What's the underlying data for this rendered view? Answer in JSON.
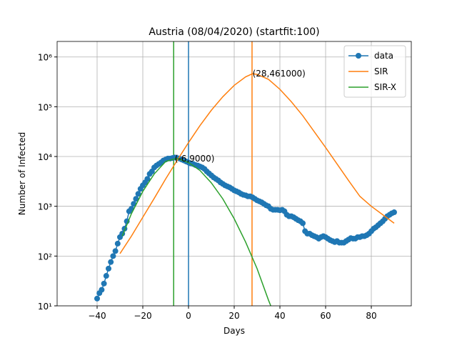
{
  "chart_data": {
    "type": "line",
    "title": "Austria (08/04/2020) (startfit:100)",
    "xlabel": "Days",
    "ylabel": "Number of Infected",
    "log_y": true,
    "grid": true,
    "legend": "upper right",
    "xlim": [
      -57.5,
      97.5
    ],
    "xticks": [
      {
        "value": -40,
        "label": "−40"
      },
      {
        "value": -20,
        "label": "−20"
      },
      0,
      20,
      40,
      60,
      80
    ],
    "ylim": [
      10,
      2050000
    ],
    "yticks": [
      {
        "value": 10,
        "label": "10¹"
      },
      {
        "value": 100,
        "label": "10²"
      },
      {
        "value": 1000,
        "label": "10³"
      },
      {
        "value": 10000,
        "label": "10⁴"
      },
      {
        "value": 100000,
        "label": "10⁵"
      },
      {
        "value": 1000000,
        "label": "10⁶"
      }
    ],
    "series": [
      {
        "name": "data",
        "color": "#1f77b4",
        "marker": "o",
        "x": [
          -40,
          -39,
          -38,
          -37,
          -36,
          -35,
          -34,
          -33,
          -32,
          -31,
          -30,
          -29,
          -28,
          -27,
          -26,
          -25,
          -24,
          -23,
          -22,
          -21,
          -20,
          -19,
          -18,
          -17,
          -16,
          -15,
          -14,
          -13,
          -12,
          -11,
          -10,
          -9,
          -8,
          -7,
          -6,
          -5,
          -4,
          -3,
          -2,
          -1,
          0,
          1,
          2,
          3,
          4,
          5,
          6,
          7,
          8,
          9,
          10,
          11,
          12,
          13,
          14,
          15,
          16,
          17,
          18,
          19,
          20,
          21,
          22,
          23,
          24,
          25,
          26,
          27,
          28,
          29,
          30,
          31,
          32,
          33,
          34,
          35,
          36,
          37,
          38,
          39,
          40,
          41,
          42,
          43,
          44,
          45,
          46,
          47,
          48,
          49,
          50,
          51,
          52,
          53,
          54,
          55,
          56,
          57,
          58,
          59,
          60,
          61,
          62,
          63,
          64,
          65,
          66,
          67,
          68,
          69,
          70,
          71,
          72,
          73,
          74,
          75,
          76,
          77,
          78,
          79,
          80,
          81,
          82,
          83,
          84,
          85,
          86,
          87,
          88,
          89,
          90
        ],
        "values": [
          14,
          18,
          21,
          28,
          40,
          56,
          76,
          100,
          126,
          178,
          240,
          282,
          355,
          500,
          794,
          891,
          1122,
          1413,
          1778,
          2239,
          2630,
          3020,
          3548,
          4467,
          5012,
          6026,
          6607,
          7079,
          7586,
          8318,
          8710,
          9120,
          9120,
          9333,
          9550,
          9333,
          9120,
          8710,
          8318,
          7943,
          7586,
          7244,
          7079,
          6761,
          6607,
          6310,
          6026,
          5623,
          5012,
          4571,
          4169,
          3802,
          3548,
          3311,
          3020,
          2818,
          2630,
          2512,
          2399,
          2239,
          2089,
          1995,
          1905,
          1778,
          1698,
          1660,
          1585,
          1585,
          1514,
          1413,
          1318,
          1259,
          1202,
          1122,
          1047,
          1000,
          891,
          851,
          851,
          851,
          832,
          851,
          794,
          676,
          631,
          631,
          603,
          562,
          525,
          500,
          457,
          316,
          282,
          282,
          263,
          251,
          240,
          224,
          240,
          251,
          240,
          224,
          209,
          200,
          191,
          200,
          186,
          186,
          186,
          200,
          214,
          229,
          224,
          224,
          240,
          240,
          251,
          251,
          263,
          282,
          316,
          355,
          380,
          417,
          457,
          500,
          562,
          631,
          676,
          724,
          759
        ]
      },
      {
        "name": "SIR",
        "color": "#ff7f0e",
        "x": [
          -30,
          -25,
          -20,
          -15,
          -10,
          -5,
          0,
          5,
          10,
          15,
          20,
          25,
          28,
          30,
          35,
          40,
          45,
          50,
          55,
          60,
          65,
          70,
          75,
          80,
          85,
          90
        ],
        "values": [
          112,
          251,
          603,
          1445,
          3548,
          8318,
          19055,
          41687,
          85114,
          158489,
          269153,
          398107,
          461000,
          446684,
          354813,
          223872,
          125893,
          66069,
          31623,
          15136,
          7079,
          3311,
          1585,
          1000,
          676,
          457
        ]
      },
      {
        "name": "SIR-X",
        "color": "#2ca02c",
        "x": [
          -29,
          -25,
          -20,
          -15,
          -10,
          -6,
          -5,
          0,
          5,
          10,
          15,
          20,
          25,
          30,
          35,
          36
        ],
        "values": [
          251,
          708,
          1995,
          4467,
          7943,
          9000,
          9120,
          7586,
          5248,
          2951,
          1413,
          562,
          191,
          56,
          13,
          10
        ]
      }
    ],
    "vlines": [
      {
        "x": 0,
        "color": "#1f77b4"
      },
      {
        "x": -6.5,
        "color": "#2ca02c"
      },
      {
        "x": 27.8,
        "color": "#ff7f0e"
      }
    ],
    "annotations": [
      {
        "text": "(28,461000)",
        "x": 28,
        "y": 461000
      },
      {
        "text": "(-6,9000)",
        "x": -6,
        "y": 9000
      }
    ]
  }
}
